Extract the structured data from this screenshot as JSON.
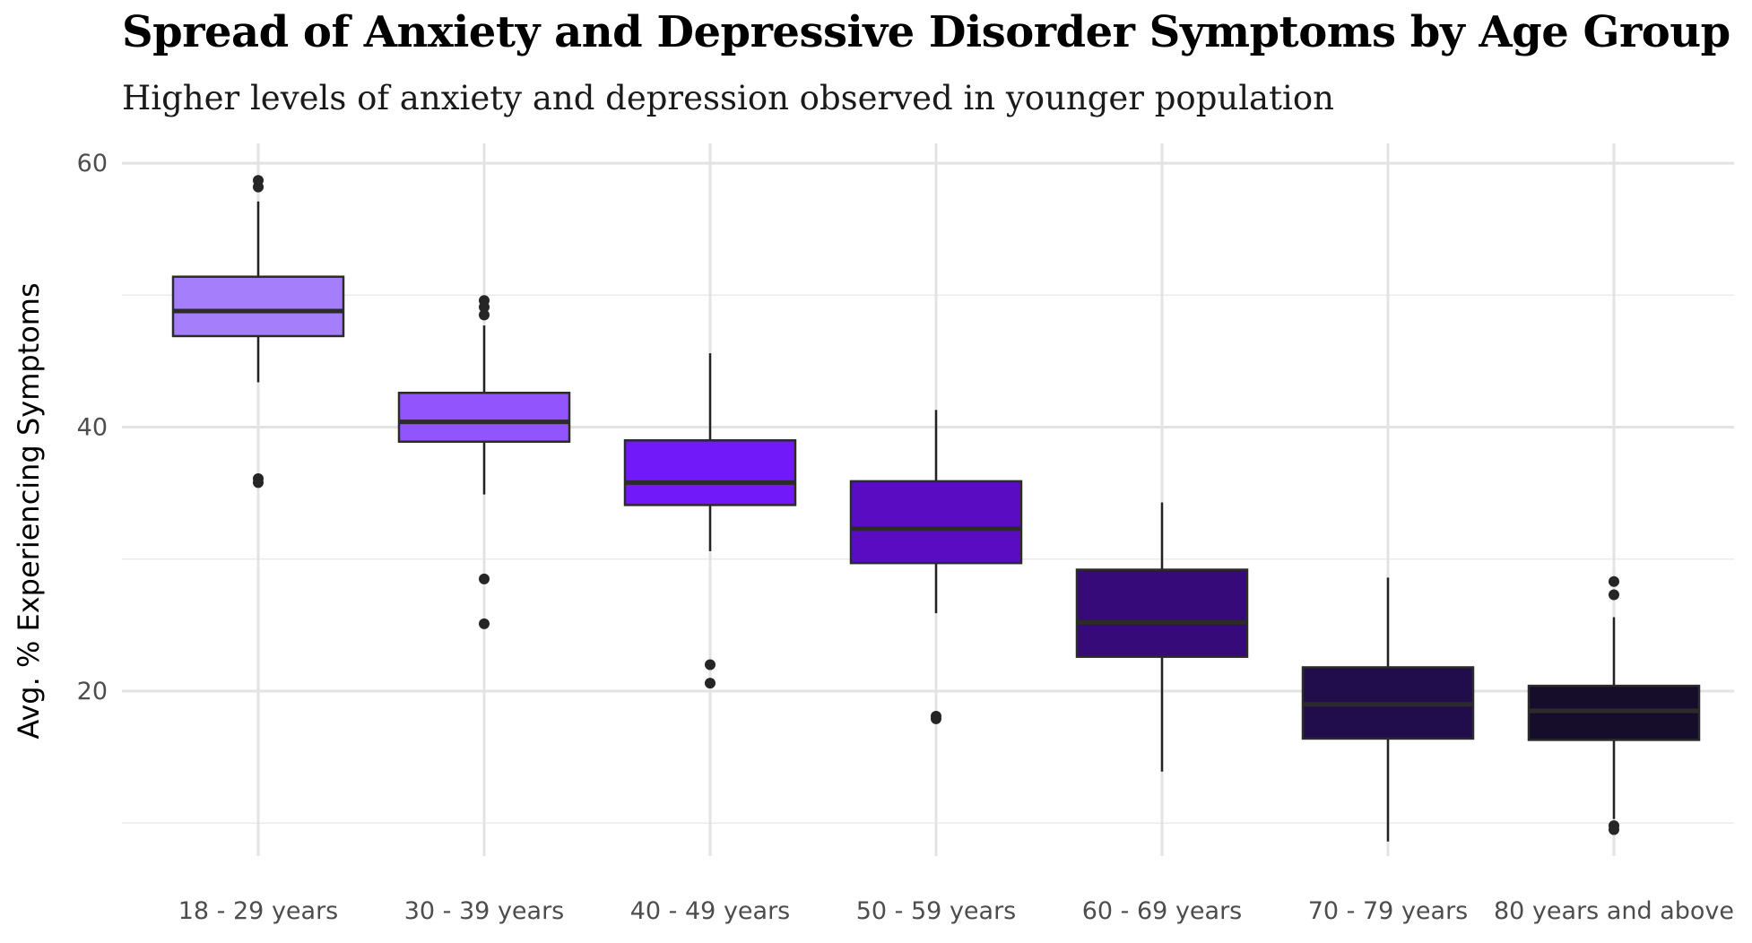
{
  "chart_data": {
    "type": "boxplot",
    "title": "Spread of Anxiety and Depressive Disorder Symptoms by Age Group",
    "subtitle": "Higher levels of anxiety and depression observed in younger population",
    "ylabel": "Avg. % Experiencing Symptoms",
    "xlabel": "",
    "ylim": [
      7.5,
      61.5
    ],
    "yticks": [
      20,
      40,
      60
    ],
    "grid": true,
    "legend": "none",
    "categories": [
      "18 - 29 years",
      "30 - 39 years",
      "40 - 49 years",
      "50 - 59 years",
      "60 - 69 years",
      "70 - 79 years",
      "80 years and above"
    ],
    "boxes": [
      {
        "category": "18 - 29 years",
        "whisker_low": 43.4,
        "q1": 46.9,
        "median": 48.8,
        "q3": 51.4,
        "whisker_high": 57.1,
        "outliers": [
          58.7,
          58.2,
          36.1,
          35.8
        ],
        "color": "#A57EFB"
      },
      {
        "category": "30 - 39 years",
        "whisker_low": 34.9,
        "q1": 38.9,
        "median": 40.4,
        "q3": 42.6,
        "whisker_high": 47.7,
        "outliers": [
          49.6,
          49.1,
          48.5,
          28.5,
          25.1
        ],
        "color": "#9254FC"
      },
      {
        "category": "40 - 49 years",
        "whisker_low": 30.6,
        "q1": 34.1,
        "median": 35.8,
        "q3": 39.0,
        "whisker_high": 45.6,
        "outliers": [
          22.0,
          20.6
        ],
        "color": "#7219FA"
      },
      {
        "category": "50 - 59 years",
        "whisker_low": 25.9,
        "q1": 29.7,
        "median": 32.3,
        "q3": 35.9,
        "whisker_high": 41.3,
        "outliers": [
          18.1,
          17.9
        ],
        "color": "#5A0CC2"
      },
      {
        "category": "60 - 69 years",
        "whisker_low": 13.9,
        "q1": 22.6,
        "median": 25.2,
        "q3": 29.2,
        "whisker_high": 34.3,
        "outliers": [],
        "color": "#360A78"
      },
      {
        "category": "70 - 79 years",
        "whisker_low": 8.6,
        "q1": 16.4,
        "median": 19.0,
        "q3": 21.8,
        "whisker_high": 28.6,
        "outliers": [],
        "color": "#210C4C"
      },
      {
        "category": "80 years and above",
        "whisker_low": 10.3,
        "q1": 16.3,
        "median": 18.5,
        "q3": 20.4,
        "whisker_high": 25.6,
        "outliers": [
          28.3,
          27.3,
          9.8,
          9.5
        ],
        "color": "#160D2A"
      }
    ]
  }
}
